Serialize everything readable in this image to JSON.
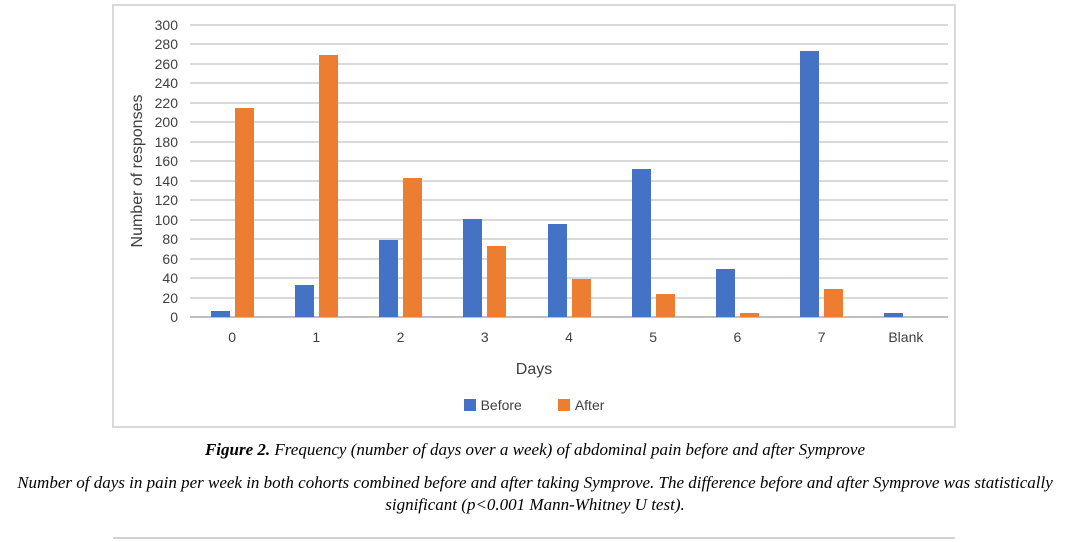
{
  "chart_data": {
    "type": "bar",
    "title": "",
    "xlabel": "Days",
    "ylabel": "Number of responses",
    "categories": [
      "0",
      "1",
      "2",
      "3",
      "4",
      "5",
      "6",
      "7",
      "Blank"
    ],
    "series": [
      {
        "name": "Before",
        "color": "#4472C4",
        "values": [
          6,
          33,
          79,
          101,
          96,
          152,
          49,
          273,
          4
        ]
      },
      {
        "name": "After",
        "color": "#ED7D31",
        "values": [
          215,
          269,
          143,
          73,
          39,
          24,
          4,
          29,
          0
        ]
      }
    ],
    "ylim": [
      0,
      300
    ],
    "ytick_step": 20,
    "grid": true,
    "legend_position": "bottom"
  },
  "figure": {
    "caption_label": "Figure 2.",
    "caption_text": " Frequency (number of days over a week) of abdominal pain before and after Symprove",
    "description": "Number of days in pain per week in both cohorts combined before and after taking Symprove. The difference before and after Symprove was statistically significant (p<0.001 Mann-Whitney U test)."
  },
  "colors": {
    "gridline": "#D9D9D9",
    "axis_line": "#BFBFBF",
    "chart_border": "#D9D9D9",
    "tick_text": "#404040",
    "divider": "#D2D2D2"
  }
}
